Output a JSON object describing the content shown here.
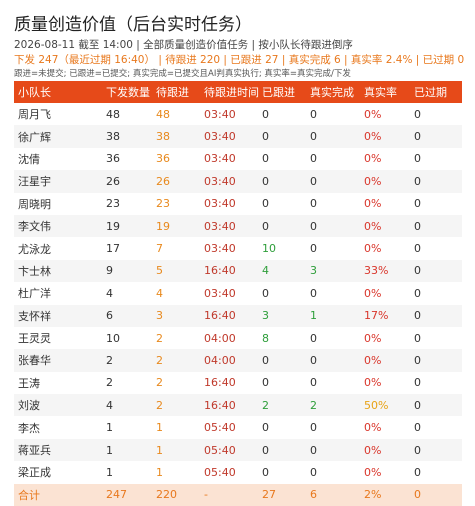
{
  "header": {
    "title": "质量创造价值（后台实时任务）",
    "subtitle": "2026-08-11 截至 14:00 | 全部质量创造价值任务 | 按小队长待跟进倒序",
    "summary": "下发 247（最近过期 16:40） | 待跟进 220 | 已跟进 27 | 真实完成 6 | 真实率 2.4% | 已过期 0",
    "note": "跟进=未提交; 已跟进=已提交; 真实完成=已提交且AI判真实执行; 真实率=真实完成/下发"
  },
  "table": {
    "columns": [
      "小队长",
      "下发数量",
      "待跟进",
      "待跟进时间",
      "已跟进",
      "真实完成",
      "真实率",
      "已过期"
    ],
    "rows": [
      [
        "周月飞",
        48,
        48,
        "03:40",
        0,
        0,
        "0%",
        0
      ],
      [
        "徐广辉",
        38,
        38,
        "03:40",
        0,
        0,
        "0%",
        0
      ],
      [
        "沈倩",
        36,
        36,
        "03:40",
        0,
        0,
        "0%",
        0
      ],
      [
        "汪星宇",
        26,
        26,
        "03:40",
        0,
        0,
        "0%",
        0
      ],
      [
        "周晓明",
        23,
        23,
        "03:40",
        0,
        0,
        "0%",
        0
      ],
      [
        "李文伟",
        19,
        19,
        "03:40",
        0,
        0,
        "0%",
        0
      ],
      [
        "尤泳龙",
        17,
        7,
        "03:40",
        10,
        0,
        "0%",
        0
      ],
      [
        "卞士林",
        9,
        5,
        "16:40",
        4,
        3,
        "33%",
        0
      ],
      [
        "杜广洋",
        4,
        4,
        "03:40",
        0,
        0,
        "0%",
        0
      ],
      [
        "支怀祥",
        6,
        3,
        "16:40",
        3,
        1,
        "17%",
        0
      ],
      [
        "王灵灵",
        10,
        2,
        "04:00",
        8,
        0,
        "0%",
        0
      ],
      [
        "张春华",
        2,
        2,
        "04:00",
        0,
        0,
        "0%",
        0
      ],
      [
        "王涛",
        2,
        2,
        "16:40",
        0,
        0,
        "0%",
        0
      ],
      [
        "刘波",
        4,
        2,
        "16:40",
        2,
        2,
        "50%",
        0
      ],
      [
        "李杰",
        1,
        1,
        "05:40",
        0,
        0,
        "0%",
        0
      ],
      [
        "蒋亚兵",
        1,
        1,
        "05:40",
        0,
        0,
        "0%",
        0
      ],
      [
        "梁正成",
        1,
        1,
        "05:40",
        0,
        0,
        "0%",
        0
      ]
    ],
    "total": [
      "合计",
      247,
      220,
      "-",
      27,
      6,
      "2%",
      0
    ]
  }
}
